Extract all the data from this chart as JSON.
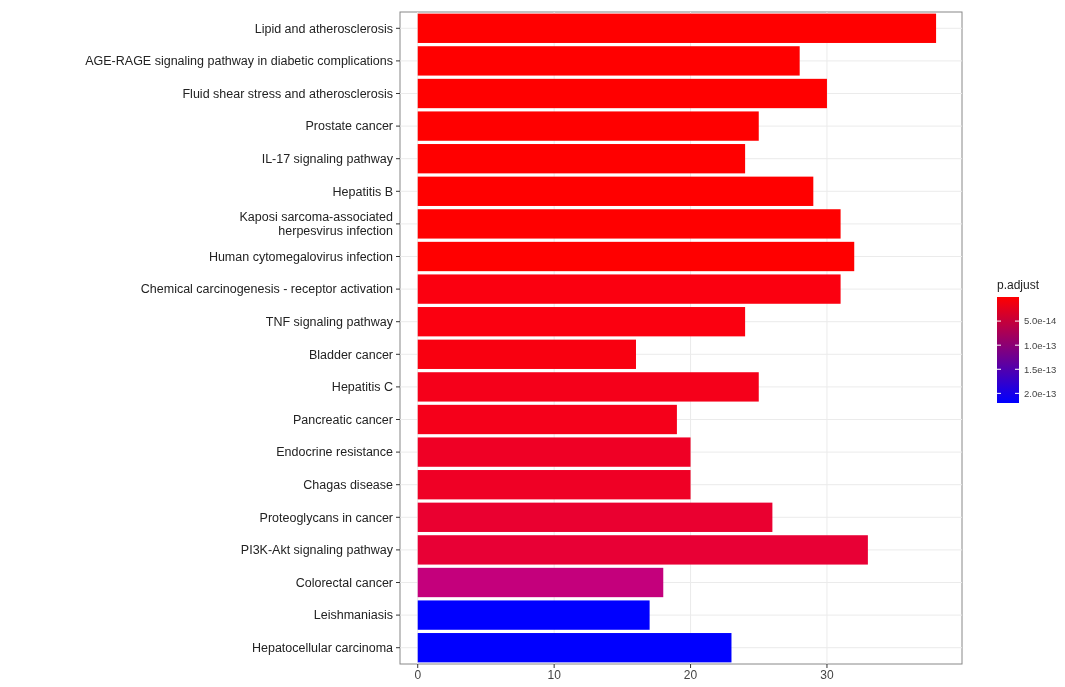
{
  "chart_data": {
    "type": "bar",
    "orientation": "horizontal",
    "categories": [
      "Lipid and atherosclerosis",
      "AGE-RAGE signaling pathway in diabetic complications",
      "Fluid shear stress and atherosclerosis",
      "Prostate cancer",
      "IL-17 signaling pathway",
      "Hepatitis B",
      "Kaposi sarcoma-associated\nherpesvirus infection",
      "Human cytomegalovirus infection",
      "Chemical carcinogenesis - receptor activation",
      "TNF signaling pathway",
      "Bladder cancer",
      "Hepatitis C",
      "Pancreatic cancer",
      "Endocrine resistance",
      "Chagas disease",
      "Proteoglycans in cancer",
      "PI3K-Akt signaling pathway",
      "Colorectal cancer",
      "Leishmaniasis",
      "Hepatocellular carcinoma"
    ],
    "values": [
      38,
      28,
      30,
      25,
      24,
      29,
      31,
      32,
      31,
      24,
      16,
      25,
      19,
      20,
      20,
      26,
      33,
      18,
      17,
      23
    ],
    "colors": [
      "#ff0000",
      "#ff0000",
      "#ff0000",
      "#ff0000",
      "#ff0000",
      "#ff0000",
      "#ff0000",
      "#ff0000",
      "#fb0010",
      "#fb0010",
      "#f90010",
      "#f5001a",
      "#f5001a",
      "#ef0025",
      "#ef0025",
      "#ea0030",
      "#e80035",
      "#c4007c",
      "#0000ff",
      "#0000ff"
    ],
    "xlim": [
      -1.3,
      39.9
    ],
    "xticks": [
      0,
      10,
      20,
      30
    ],
    "grid": true,
    "clabel": "p.adjust",
    "clim": [
      0,
      2.2e-13
    ],
    "cticks": [
      {
        "value": 5e-14,
        "label": "5.0e-14"
      },
      {
        "value": 1e-13,
        "label": "1.0e-13"
      },
      {
        "value": 1.5e-13,
        "label": "1.5e-13"
      },
      {
        "value": 2e-13,
        "label": "2.0e-13"
      }
    ]
  }
}
